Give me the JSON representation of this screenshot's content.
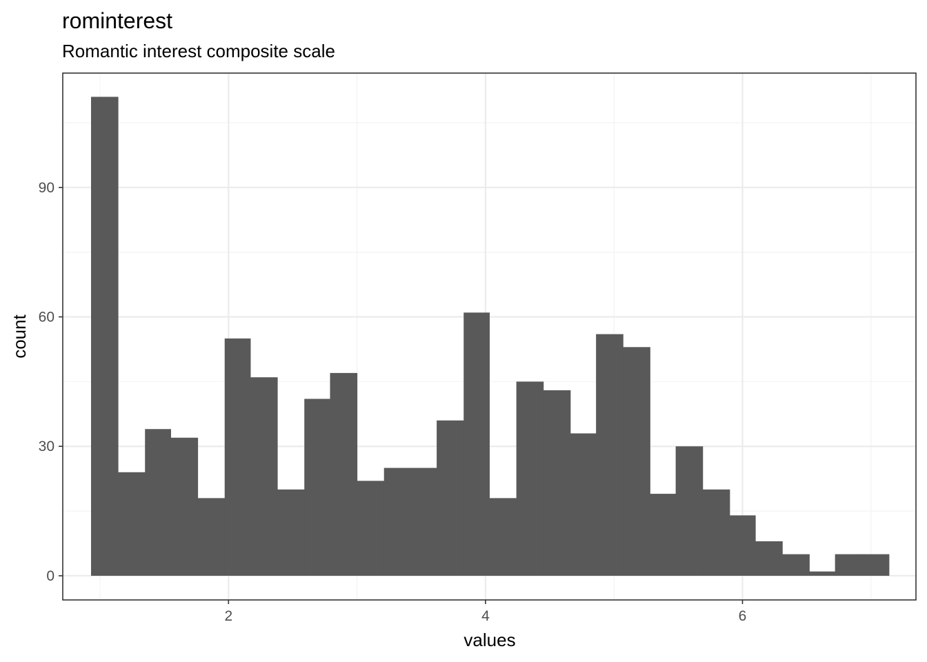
{
  "chart_data": {
    "type": "bar",
    "title": "rominterest",
    "subtitle": "Romantic interest composite scale",
    "xlabel": "values",
    "ylabel": "count",
    "x_ticks": [
      2,
      4,
      6
    ],
    "y_ticks": [
      0,
      30,
      60,
      90
    ],
    "xlim": [
      0.71,
      7.35
    ],
    "ylim": [
      -5.6,
      116.5
    ],
    "bin_width": 0.207,
    "bins": [
      {
        "start": 0.93,
        "end": 1.14,
        "count": 111
      },
      {
        "start": 1.14,
        "end": 1.35,
        "count": 24
      },
      {
        "start": 1.35,
        "end": 1.55,
        "count": 34
      },
      {
        "start": 1.55,
        "end": 1.76,
        "count": 32
      },
      {
        "start": 1.76,
        "end": 1.97,
        "count": 18
      },
      {
        "start": 1.97,
        "end": 2.17,
        "count": 55
      },
      {
        "start": 2.17,
        "end": 2.38,
        "count": 46
      },
      {
        "start": 2.38,
        "end": 2.59,
        "count": 20
      },
      {
        "start": 2.59,
        "end": 2.79,
        "count": 41
      },
      {
        "start": 2.79,
        "end": 3.0,
        "count": 47
      },
      {
        "start": 3.0,
        "end": 3.21,
        "count": 22
      },
      {
        "start": 3.21,
        "end": 3.41,
        "count": 25
      },
      {
        "start": 3.41,
        "end": 3.62,
        "count": 25
      },
      {
        "start": 3.62,
        "end": 3.83,
        "count": 36
      },
      {
        "start": 3.83,
        "end": 4.03,
        "count": 61
      },
      {
        "start": 4.03,
        "end": 4.24,
        "count": 18
      },
      {
        "start": 4.24,
        "end": 4.45,
        "count": 45
      },
      {
        "start": 4.45,
        "end": 4.66,
        "count": 43
      },
      {
        "start": 4.66,
        "end": 4.86,
        "count": 33
      },
      {
        "start": 4.86,
        "end": 5.07,
        "count": 56
      },
      {
        "start": 5.07,
        "end": 5.28,
        "count": 53
      },
      {
        "start": 5.28,
        "end": 5.48,
        "count": 19
      },
      {
        "start": 5.48,
        "end": 5.69,
        "count": 30
      },
      {
        "start": 5.69,
        "end": 5.9,
        "count": 20
      },
      {
        "start": 5.9,
        "end": 6.1,
        "count": 14
      },
      {
        "start": 6.1,
        "end": 6.31,
        "count": 8
      },
      {
        "start": 6.31,
        "end": 6.52,
        "count": 5
      },
      {
        "start": 6.52,
        "end": 6.72,
        "count": 1
      },
      {
        "start": 6.72,
        "end": 6.93,
        "count": 5
      },
      {
        "start": 6.93,
        "end": 7.14,
        "count": 5
      }
    ],
    "grid": true,
    "colors": {
      "bar": "#595959",
      "grid_major": "#ebebeb",
      "grid_minor": "#f2f2f2",
      "panel_border": "#333333",
      "tick_text": "#4d4d4d"
    }
  }
}
